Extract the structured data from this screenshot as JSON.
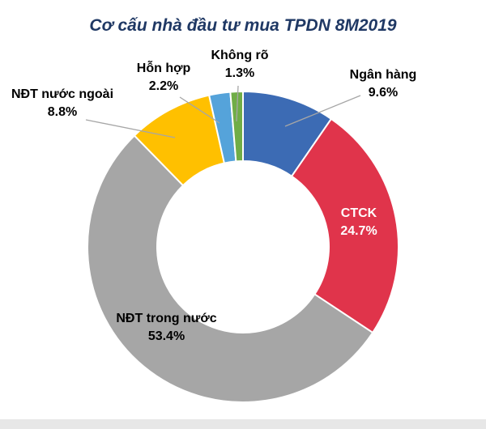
{
  "page": {
    "title": "Cơ cấu nhà đầu tư mua TPDN 8M2019"
  },
  "chart_data": {
    "type": "pie",
    "subtype": "donut",
    "title": "Cơ cấu nhà đầu tư mua TPDN 8M2019",
    "unit": "%",
    "start_angle_deg": -90,
    "direction": "clockwise",
    "legend": "none",
    "labels_position": "outside callouts for small slices, inside for large slices",
    "series": [
      {
        "name": "Ngân hàng",
        "value": 9.6,
        "label": "9.6%",
        "color": "#3C6BB4"
      },
      {
        "name": "CTCK",
        "value": 24.7,
        "label": "24.7%",
        "color": "#E0344B"
      },
      {
        "name": "NĐT trong nước",
        "value": 53.4,
        "label": "53.4%",
        "color": "#A6A6A6"
      },
      {
        "name": "NĐT nước ngoài",
        "value": 8.8,
        "label": "8.8%",
        "color": "#FFC000"
      },
      {
        "name": "Hỗn hợp",
        "value": 2.2,
        "label": "2.2%",
        "color": "#55A3DA"
      },
      {
        "name": "Không rõ",
        "value": 1.3,
        "label": "1.3%",
        "color": "#70AD47"
      }
    ],
    "colors": {
      "title": "#1F3864",
      "leader_line": "#A6A6A6",
      "inside_label_ctck": "#ffffff",
      "inside_label_ndt_trong_nuoc": "#000000"
    }
  }
}
